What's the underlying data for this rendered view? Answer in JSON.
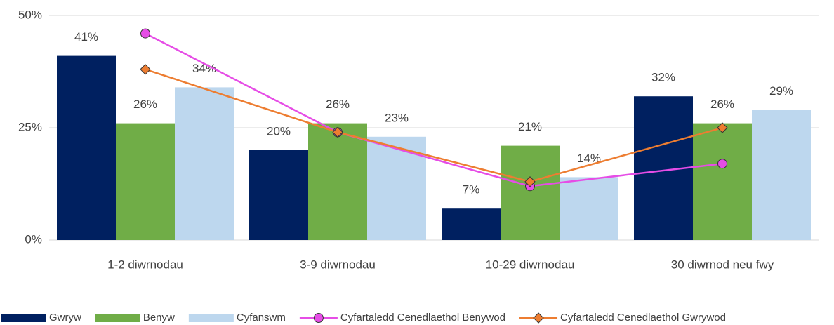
{
  "chart_data": {
    "type": "bar",
    "categories": [
      "1-2 diwrnodau",
      "3-9 diwrnodau",
      "10-29 diwrnodau",
      "30 diwrnod neu fwy"
    ],
    "series": [
      {
        "name": "Gwryw",
        "color": "#002060",
        "values": [
          41,
          20,
          7,
          32
        ],
        "value_labels": [
          "41%",
          "20%",
          "7%",
          "32%"
        ]
      },
      {
        "name": "Benyw",
        "color": "#70ad47",
        "values": [
          26,
          26,
          21,
          26
        ],
        "value_labels": [
          "26%",
          "26%",
          "21%",
          "26%"
        ]
      },
      {
        "name": "Cyfanswm",
        "color": "#bdd7ee",
        "values": [
          34,
          23,
          14,
          29
        ],
        "value_labels": [
          "34%",
          "23%",
          "14%",
          "29%"
        ]
      },
      {
        "name": "Cyfartaledd Cenedlaethol Benywod",
        "type": "line",
        "marker": "circle",
        "color": "#e64de6",
        "values": [
          46,
          24,
          12,
          17
        ]
      },
      {
        "name": "Cyfartaledd Cenedlaethol Gwrywod",
        "type": "line",
        "marker": "diamond",
        "color": "#ed7d31",
        "values": [
          38,
          24,
          13,
          25
        ]
      }
    ],
    "ylim": [
      0,
      50
    ],
    "yticks": [
      {
        "value": 0,
        "label": "0%"
      },
      {
        "value": 25,
        "label": "25%"
      },
      {
        "value": 50,
        "label": "50%"
      }
    ],
    "grid": true,
    "legend": "bottom"
  }
}
